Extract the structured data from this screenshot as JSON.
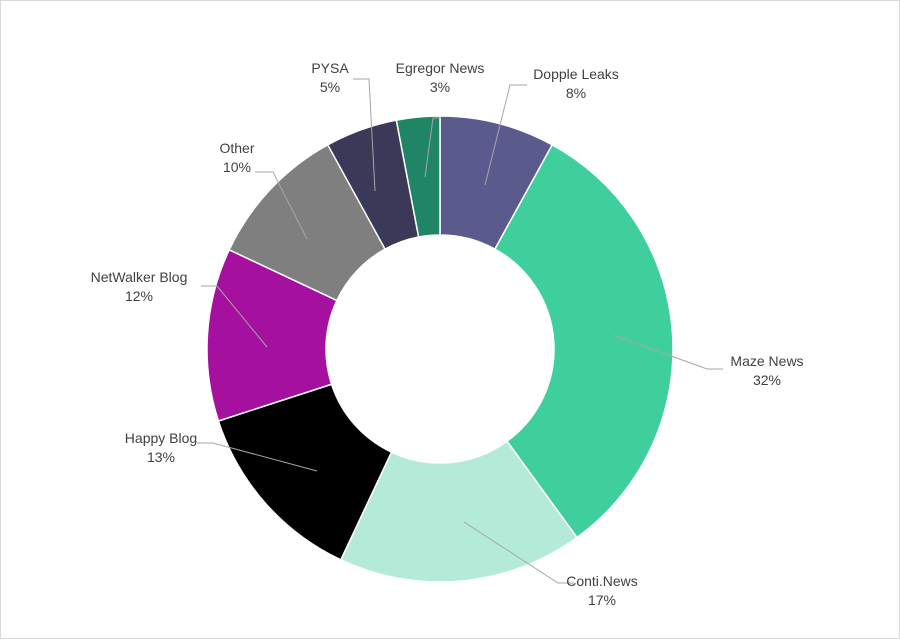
{
  "chart_data": {
    "type": "pie",
    "donut": true,
    "title": "",
    "legend": "none",
    "data_labels": "category-and-percent",
    "slices": [
      {
        "label": "Dopple Leaks",
        "value": 8,
        "value_label": "8%",
        "color": "#5b5a8c"
      },
      {
        "label": "Maze News",
        "value": 32,
        "value_label": "32%",
        "color": "#3fcf9d"
      },
      {
        "label": "Conti.News",
        "value": 17,
        "value_label": "17%",
        "color": "#b3ead8"
      },
      {
        "label": "Happy Blog",
        "value": 13,
        "value_label": "13%",
        "color": "#000000"
      },
      {
        "label": "NetWalker Blog",
        "value": 12,
        "value_label": "12%",
        "color": "#a5119e"
      },
      {
        "label": "Other",
        "value": 10,
        "value_label": "10%",
        "color": "#7f7f7f"
      },
      {
        "label": "PYSA",
        "value": 5,
        "value_label": "5%",
        "color": "#3a3958"
      },
      {
        "label": "Egregor News",
        "value": 3,
        "value_label": "3%",
        "color": "#1f8564"
      }
    ]
  }
}
